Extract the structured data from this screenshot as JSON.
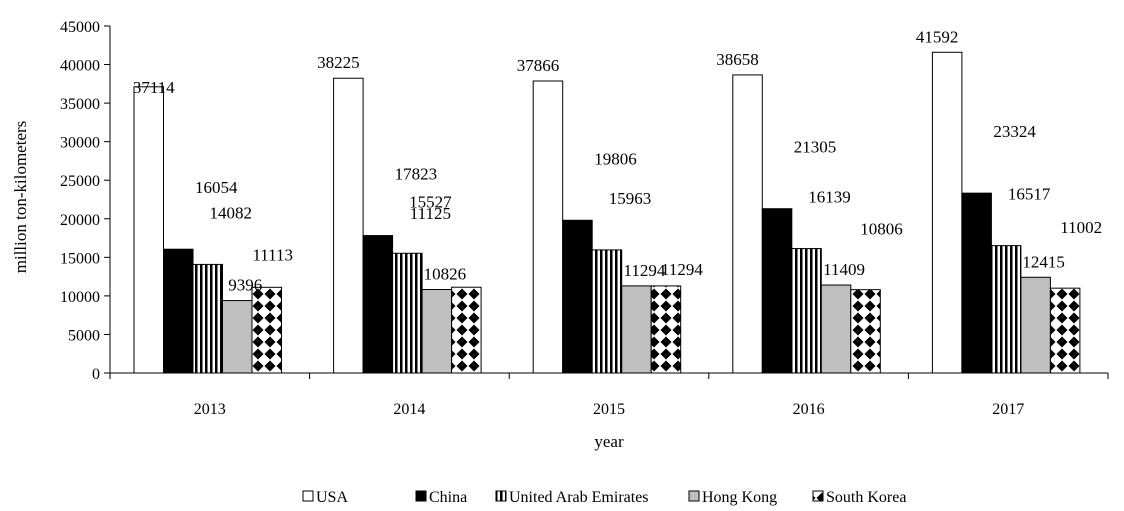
{
  "chart_data": {
    "type": "bar",
    "categories": [
      "2013",
      "2014",
      "2015",
      "2016",
      "2017"
    ],
    "series": [
      {
        "name": "USA",
        "values": [
          37114,
          38225,
          37866,
          38658,
          41592
        ],
        "pattern": "white"
      },
      {
        "name": "China",
        "values": [
          16054,
          17823,
          19806,
          21305,
          23324
        ],
        "pattern": "black"
      },
      {
        "name": "United Arab Emirates",
        "values": [
          14082,
          15527,
          15963,
          16139,
          16517
        ],
        "pattern": "vertical-stripes"
      },
      {
        "name": "Hong Kong",
        "values": [
          9396,
          10826,
          11294,
          11409,
          12415
        ],
        "pattern": "gray"
      },
      {
        "name": "South Korea",
        "values": [
          11113,
          11125,
          11294,
          10806,
          11002
        ],
        "pattern": "diamond-checker"
      }
    ],
    "xlabel": "year",
    "ylabel": "million ton-kilometers",
    "ylim": [
      0,
      45000
    ],
    "yticks": [
      0,
      5000,
      10000,
      15000,
      20000,
      25000,
      30000,
      35000,
      40000,
      45000
    ],
    "grid": false,
    "legend_position": "bottom",
    "colors": {
      "white": "#ffffff",
      "black": "#000000",
      "gray": "#bfbfbf",
      "stroke": "#000000"
    }
  }
}
